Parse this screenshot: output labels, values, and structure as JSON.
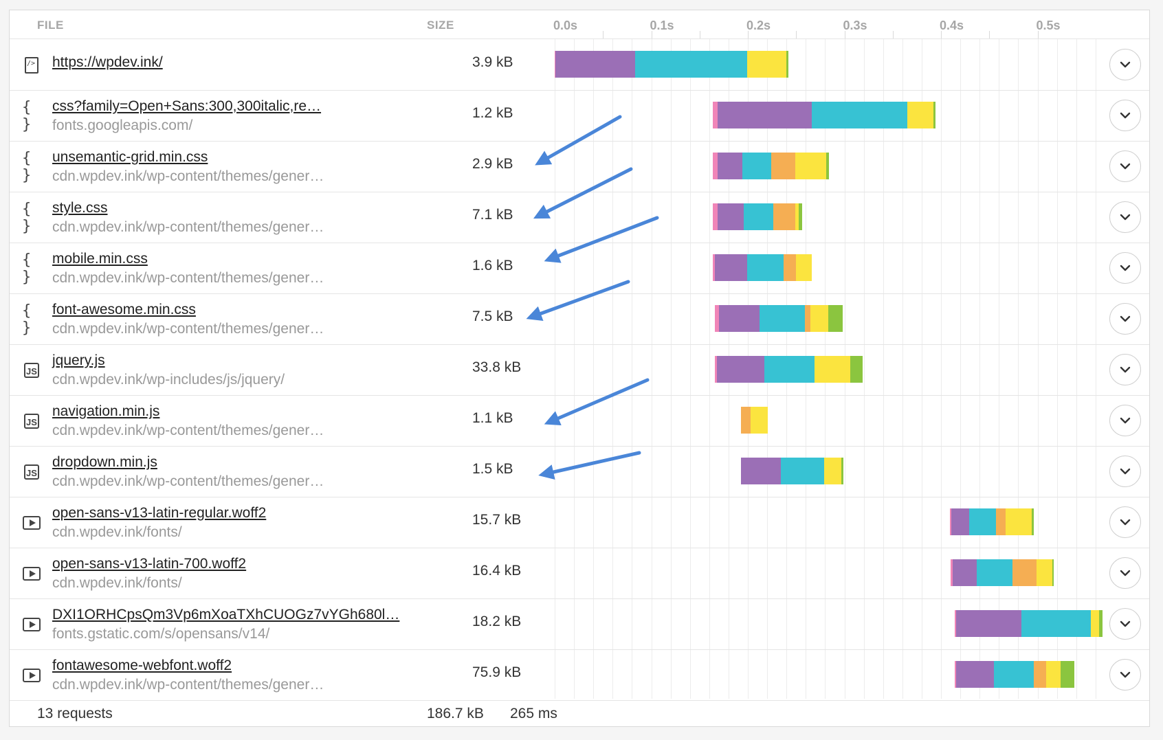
{
  "header": {
    "file_label": "FILE",
    "size_label": "SIZE",
    "ticks": [
      "0.0s",
      "0.1s",
      "0.2s",
      "0.3s",
      "0.4s",
      "0.5s"
    ]
  },
  "colors": {
    "pink": "#f085b8",
    "purple": "#9b6fb6",
    "teal": "#37c2d3",
    "orange": "#f5ae53",
    "yellow": "#fbe43f",
    "green": "#8bc53f"
  },
  "rows": [
    {
      "name": "https://wpdev.ink/",
      "sub": "",
      "size": "3.9 kB",
      "icon": "html-document-icon"
    },
    {
      "name": "css?family=Open+Sans:300,300italic,re…",
      "sub": "fonts.googleapis.com/",
      "size": "1.2 kB",
      "icon": "css-braces-icon"
    },
    {
      "name": "unsemantic-grid.min.css",
      "sub": "cdn.wpdev.ink/wp-content/themes/gener…",
      "size": "2.9 kB",
      "icon": "css-braces-icon"
    },
    {
      "name": "style.css",
      "sub": "cdn.wpdev.ink/wp-content/themes/gener…",
      "size": "7.1 kB",
      "icon": "css-braces-icon"
    },
    {
      "name": "mobile.min.css",
      "sub": "cdn.wpdev.ink/wp-content/themes/gener…",
      "size": "1.6 kB",
      "icon": "css-braces-icon"
    },
    {
      "name": "font-awesome.min.css",
      "sub": "cdn.wpdev.ink/wp-content/themes/gener…",
      "size": "7.5 kB",
      "icon": "css-braces-icon"
    },
    {
      "name": "jquery.js",
      "sub": "cdn.wpdev.ink/wp-includes/js/jquery/",
      "size": "33.8 kB",
      "icon": "js-file-icon"
    },
    {
      "name": "navigation.min.js",
      "sub": "cdn.wpdev.ink/wp-content/themes/gener…",
      "size": "1.1 kB",
      "icon": "js-file-icon"
    },
    {
      "name": "dropdown.min.js",
      "sub": "cdn.wpdev.ink/wp-content/themes/gener…",
      "size": "1.5 kB",
      "icon": "js-file-icon"
    },
    {
      "name": "open-sans-v13-latin-regular.woff2",
      "sub": "cdn.wpdev.ink/fonts/",
      "size": "15.7 kB",
      "icon": "font-media-icon"
    },
    {
      "name": "open-sans-v13-latin-700.woff2",
      "sub": "cdn.wpdev.ink/fonts/",
      "size": "16.4 kB",
      "icon": "font-media-icon"
    },
    {
      "name": "DXI1ORHCpsQm3Vp6mXoaTXhCUOGz7vYGh680l…",
      "sub": "fonts.gstatic.com/s/opensans/v14/",
      "size": "18.2 kB",
      "icon": "font-media-icon"
    },
    {
      "name": "fontawesome-webfont.woff2",
      "sub": "cdn.wpdev.ink/wp-content/themes/gener…",
      "size": "75.9 kB",
      "icon": "font-media-icon"
    }
  ],
  "timing_segments": [
    [
      [
        "pink",
        0.0,
        0.001
      ],
      [
        "purple",
        0.001,
        0.083
      ],
      [
        "teal",
        0.083,
        0.199
      ],
      [
        "yellow",
        0.199,
        0.24
      ],
      [
        "green",
        0.24,
        0.242
      ]
    ],
    [
      [
        "pink",
        0.164,
        0.169
      ],
      [
        "purple",
        0.169,
        0.266
      ],
      [
        "teal",
        0.266,
        0.365
      ],
      [
        "yellow",
        0.365,
        0.392
      ],
      [
        "green",
        0.392,
        0.394
      ]
    ],
    [
      [
        "pink",
        0.164,
        0.169
      ],
      [
        "purple",
        0.169,
        0.194
      ],
      [
        "teal",
        0.194,
        0.224
      ],
      [
        "orange",
        0.224,
        0.249
      ],
      [
        "yellow",
        0.249,
        0.281
      ],
      [
        "green",
        0.281,
        0.284
      ]
    ],
    [
      [
        "pink",
        0.164,
        0.169
      ],
      [
        "purple",
        0.169,
        0.196
      ],
      [
        "teal",
        0.196,
        0.226
      ],
      [
        "orange",
        0.226,
        0.249
      ],
      [
        "yellow",
        0.249,
        0.253
      ],
      [
        "green",
        0.253,
        0.256
      ]
    ],
    [
      [
        "pink",
        0.164,
        0.166
      ],
      [
        "purple",
        0.166,
        0.199
      ],
      [
        "teal",
        0.199,
        0.237
      ],
      [
        "orange",
        0.237,
        0.25
      ],
      [
        "yellow",
        0.25,
        0.266
      ]
    ],
    [
      [
        "pink",
        0.166,
        0.17
      ],
      [
        "purple",
        0.17,
        0.212
      ],
      [
        "teal",
        0.212,
        0.259
      ],
      [
        "orange",
        0.259,
        0.265
      ],
      [
        "yellow",
        0.265,
        0.283
      ],
      [
        "green",
        0.283,
        0.298
      ]
    ],
    [
      [
        "pink",
        0.166,
        0.168
      ],
      [
        "purple",
        0.168,
        0.217
      ],
      [
        "teal",
        0.217,
        0.269
      ],
      [
        "yellow",
        0.269,
        0.306
      ],
      [
        "green",
        0.306,
        0.319
      ]
    ],
    [
      [
        "orange",
        0.193,
        0.203
      ],
      [
        "yellow",
        0.203,
        0.221
      ]
    ],
    [
      [
        "purple",
        0.193,
        0.234
      ],
      [
        "teal",
        0.234,
        0.279
      ],
      [
        "yellow",
        0.279,
        0.297
      ],
      [
        "green",
        0.297,
        0.299
      ]
    ],
    [
      [
        "pink",
        0.409,
        0.411
      ],
      [
        "purple",
        0.411,
        0.429
      ],
      [
        "teal",
        0.429,
        0.457
      ],
      [
        "orange",
        0.457,
        0.467
      ],
      [
        "yellow",
        0.467,
        0.494
      ],
      [
        "green",
        0.494,
        0.496
      ]
    ],
    [
      [
        "pink",
        0.41,
        0.412
      ],
      [
        "purple",
        0.412,
        0.437
      ],
      [
        "teal",
        0.437,
        0.474
      ],
      [
        "orange",
        0.474,
        0.499
      ],
      [
        "yellow",
        0.499,
        0.515
      ],
      [
        "green",
        0.515,
        0.517
      ]
    ],
    [
      [
        "pink",
        0.414,
        0.416
      ],
      [
        "purple",
        0.416,
        0.483
      ],
      [
        "teal",
        0.483,
        0.555
      ],
      [
        "yellow",
        0.555,
        0.564
      ],
      [
        "green",
        0.564,
        0.567
      ]
    ],
    [
      [
        "pink",
        0.414,
        0.416
      ],
      [
        "purple",
        0.416,
        0.455
      ],
      [
        "teal",
        0.455,
        0.496
      ],
      [
        "orange",
        0.496,
        0.509
      ],
      [
        "yellow",
        0.509,
        0.524
      ],
      [
        "green",
        0.524,
        0.538
      ]
    ]
  ],
  "footer": {
    "requests": "13 requests",
    "total_size": "186.7 kB",
    "total_time": "265 ms"
  }
}
